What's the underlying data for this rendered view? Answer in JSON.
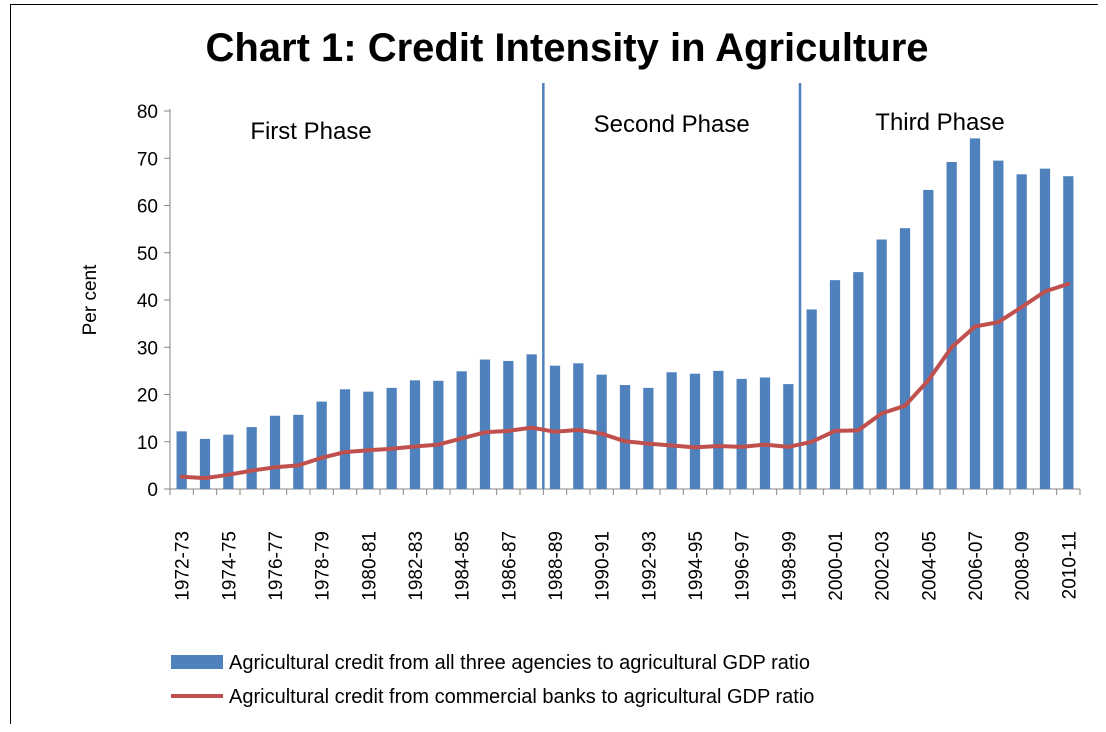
{
  "chart_data": {
    "type": "bar",
    "title": "Chart 1: Credit Intensity in Agriculture",
    "ylabel": "Per cent",
    "xlabel": "",
    "ylim": [
      0,
      80
    ],
    "yticks": [
      0,
      10,
      20,
      30,
      40,
      50,
      60,
      70,
      80
    ],
    "categories": [
      "1972-73",
      "1973-74",
      "1974-75",
      "1975-76",
      "1976-77",
      "1977-78",
      "1978-79",
      "1979-80",
      "1980-81",
      "1981-82",
      "1982-83",
      "1983-84",
      "1984-85",
      "1985-86",
      "1986-87",
      "1987-88",
      "1988-89",
      "1989-90",
      "1990-91",
      "1991-92",
      "1992-93",
      "1993-94",
      "1994-95",
      "1995-96",
      "1996-97",
      "1997-98",
      "1998-99",
      "1999-00",
      "2000-01",
      "2001-02",
      "2002-03",
      "2003-04",
      "2004-05",
      "2005-06",
      "2006-07",
      "2007-08",
      "2008-09",
      "2009-10",
      "2010-11"
    ],
    "tick_labels": [
      "1972-73",
      "1974-75",
      "1976-77",
      "1978-79",
      "1980-81",
      "1982-83",
      "1984-85",
      "1986-87",
      "1988-89",
      "1990-91",
      "1992-93",
      "1994-95",
      "1996-97",
      "1998-99",
      "2000-01",
      "2002-03",
      "2004-05",
      "2006-07",
      "2008-09",
      "2010-11"
    ],
    "series": [
      {
        "name": "Agricultural credit from all three agencies to agricultural GDP ratio",
        "kind": "bar",
        "color": "#4F81BD",
        "values": [
          12.2,
          10.6,
          11.5,
          13.1,
          15.5,
          15.7,
          18.5,
          21.1,
          20.6,
          21.4,
          23.0,
          22.9,
          24.9,
          27.4,
          27.1,
          28.5,
          26.1,
          26.6,
          24.2,
          22.0,
          21.4,
          24.7,
          24.4,
          25.0,
          23.3,
          23.6,
          22.2,
          38.0,
          44.2,
          45.9,
          52.8,
          55.2,
          63.3,
          69.2,
          74.2,
          69.5,
          66.6,
          67.8,
          66.2
        ]
      },
      {
        "name": "Agricultural credit from commercial banks to agricultural GDP ratio",
        "kind": "line",
        "color": "#C0504D",
        "values": [
          2.6,
          2.3,
          3.0,
          3.9,
          4.6,
          5.0,
          6.6,
          7.8,
          8.2,
          8.5,
          9.0,
          9.4,
          10.7,
          12.0,
          12.3,
          13.0,
          12.1,
          12.5,
          11.7,
          10.1,
          9.6,
          9.2,
          8.8,
          9.1,
          8.9,
          9.4,
          8.9,
          10.0,
          12.3,
          12.4,
          16.0,
          17.6,
          23.0,
          30.0,
          34.4,
          35.3,
          38.5,
          41.8,
          43.4
        ]
      }
    ],
    "phase_labels": [
      "First Phase",
      "Second Phase",
      "Third Phase"
    ],
    "phase_divider_indices": [
      15.5,
      26.5
    ],
    "legend_position": "bottom",
    "grid": false
  }
}
